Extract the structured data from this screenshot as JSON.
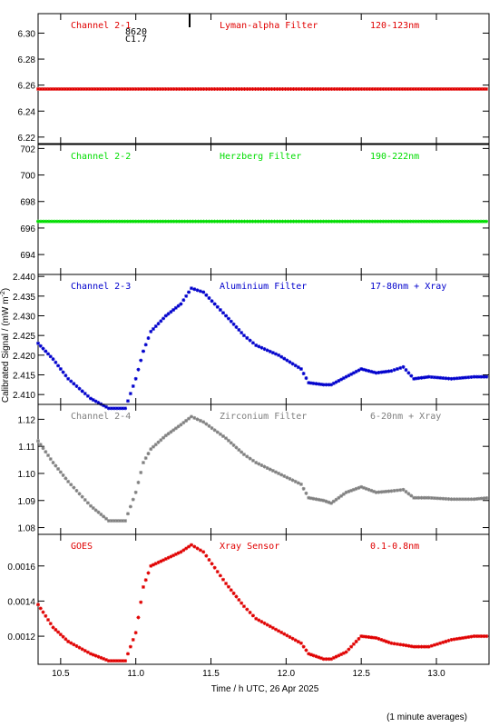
{
  "figure": {
    "ylabel": "Calibrated Signal / (mW m",
    "ylabel_sup": "-2",
    "ylabel_end": ")",
    "xlabel": "Time / h UTC, 26 Apr 2025",
    "footnote": "(1 minute averages)",
    "marker_text_1": "8620",
    "marker_text_2": "C1.7"
  },
  "chart_data": [
    {
      "type": "scatter",
      "panel_labels": {
        "left": "Channel 2-1",
        "mid": "Lyman-alpha Filter",
        "right": "120-123nm"
      },
      "color": "#e00000",
      "ylim": [
        6.215,
        6.315
      ],
      "yticks": [
        "6.22",
        "6.24",
        "6.26",
        "6.28",
        "6.30"
      ],
      "x": [
        10.35,
        13.35
      ],
      "y": [
        6.257,
        6.257
      ]
    },
    {
      "type": "scatter",
      "panel_labels": {
        "left": "Channel 2-2",
        "mid": "Herzberg Filter",
        "right": "190-222nm"
      },
      "color": "#00dd00",
      "ylim": [
        692.5,
        702.3
      ],
      "yticks": [
        "694",
        "696",
        "698",
        "700",
        "702"
      ],
      "x": [
        10.35,
        13.35
      ],
      "y": [
        696.5,
        696.5
      ]
    },
    {
      "type": "scatter",
      "panel_labels": {
        "left": "Channel 2-3",
        "mid": "Aluminium Filter",
        "right": "17-80nm + Xray"
      },
      "color": "#0000cc",
      "ylim": [
        2.4075,
        2.4405
      ],
      "yticks": [
        "2.410",
        "2.415",
        "2.420",
        "2.425",
        "2.430",
        "2.435",
        "2.440"
      ],
      "x": [
        10.35,
        10.45,
        10.55,
        10.7,
        10.82,
        10.93,
        11.0,
        11.05,
        11.1,
        11.2,
        11.3,
        11.37,
        11.45,
        11.6,
        11.72,
        11.8,
        11.95,
        12.1,
        12.15,
        12.25,
        12.3,
        12.4,
        12.5,
        12.6,
        12.7,
        12.78,
        12.85,
        12.95,
        13.1,
        13.25,
        13.35
      ],
      "y": [
        2.423,
        2.419,
        2.414,
        2.409,
        2.4065,
        2.4065,
        2.414,
        2.421,
        2.426,
        2.43,
        2.433,
        2.437,
        2.436,
        2.43,
        2.425,
        2.4225,
        2.42,
        2.4165,
        2.413,
        2.4125,
        2.4125,
        2.4145,
        2.4165,
        2.4155,
        2.416,
        2.417,
        2.414,
        2.4145,
        2.414,
        2.4145,
        2.4145
      ]
    },
    {
      "type": "scatter",
      "panel_labels": {
        "left": "Channel 2-4",
        "mid": "Zirconium Filter",
        "right": "6-20nm + Xray"
      },
      "color": "#808080",
      "ylim": [
        1.0775,
        1.1255
      ],
      "yticks": [
        "1.08",
        "1.09",
        "1.10",
        "1.11",
        "1.12"
      ],
      "x": [
        10.35,
        10.45,
        10.55,
        10.7,
        10.82,
        10.93,
        11.0,
        11.05,
        11.1,
        11.2,
        11.3,
        11.37,
        11.45,
        11.6,
        11.72,
        11.8,
        11.95,
        12.1,
        12.15,
        12.25,
        12.3,
        12.4,
        12.5,
        12.6,
        12.7,
        12.78,
        12.85,
        12.95,
        13.1,
        13.25,
        13.35
      ],
      "y": [
        1.112,
        1.104,
        1.097,
        1.088,
        1.0825,
        1.0825,
        1.093,
        1.104,
        1.109,
        1.114,
        1.118,
        1.121,
        1.119,
        1.113,
        1.107,
        1.104,
        1.1,
        1.096,
        1.091,
        1.09,
        1.089,
        1.093,
        1.095,
        1.093,
        1.0935,
        1.094,
        1.091,
        1.091,
        1.0905,
        1.0905,
        1.091
      ]
    },
    {
      "type": "scatter",
      "panel_labels": {
        "left": "GOES",
        "mid": "Xray Sensor",
        "right": "0.1-0.8nm"
      },
      "color": "#e00000",
      "ylim": [
        0.00104,
        0.00178
      ],
      "yticks": [
        "0.0012",
        "0.0014",
        "0.0016"
      ],
      "xticks": [
        "10.5",
        "11.0",
        "11.5",
        "12.0",
        "12.5",
        "13.0"
      ],
      "x": [
        10.35,
        10.45,
        10.55,
        10.7,
        10.82,
        10.93,
        11.0,
        11.05,
        11.1,
        11.2,
        11.3,
        11.37,
        11.45,
        11.6,
        11.72,
        11.8,
        11.95,
        12.1,
        12.15,
        12.25,
        12.3,
        12.4,
        12.5,
        12.6,
        12.7,
        12.78,
        12.85,
        12.95,
        13.1,
        13.25,
        13.35
      ],
      "y": [
        0.00138,
        0.00125,
        0.00117,
        0.0011,
        0.00106,
        0.00106,
        0.00122,
        0.00148,
        0.0016,
        0.00164,
        0.00168,
        0.00172,
        0.00168,
        0.0015,
        0.00137,
        0.0013,
        0.00123,
        0.00116,
        0.0011,
        0.00107,
        0.00107,
        0.00111,
        0.0012,
        0.00119,
        0.00116,
        0.00115,
        0.00114,
        0.00114,
        0.00118,
        0.0012,
        0.0012
      ]
    }
  ]
}
